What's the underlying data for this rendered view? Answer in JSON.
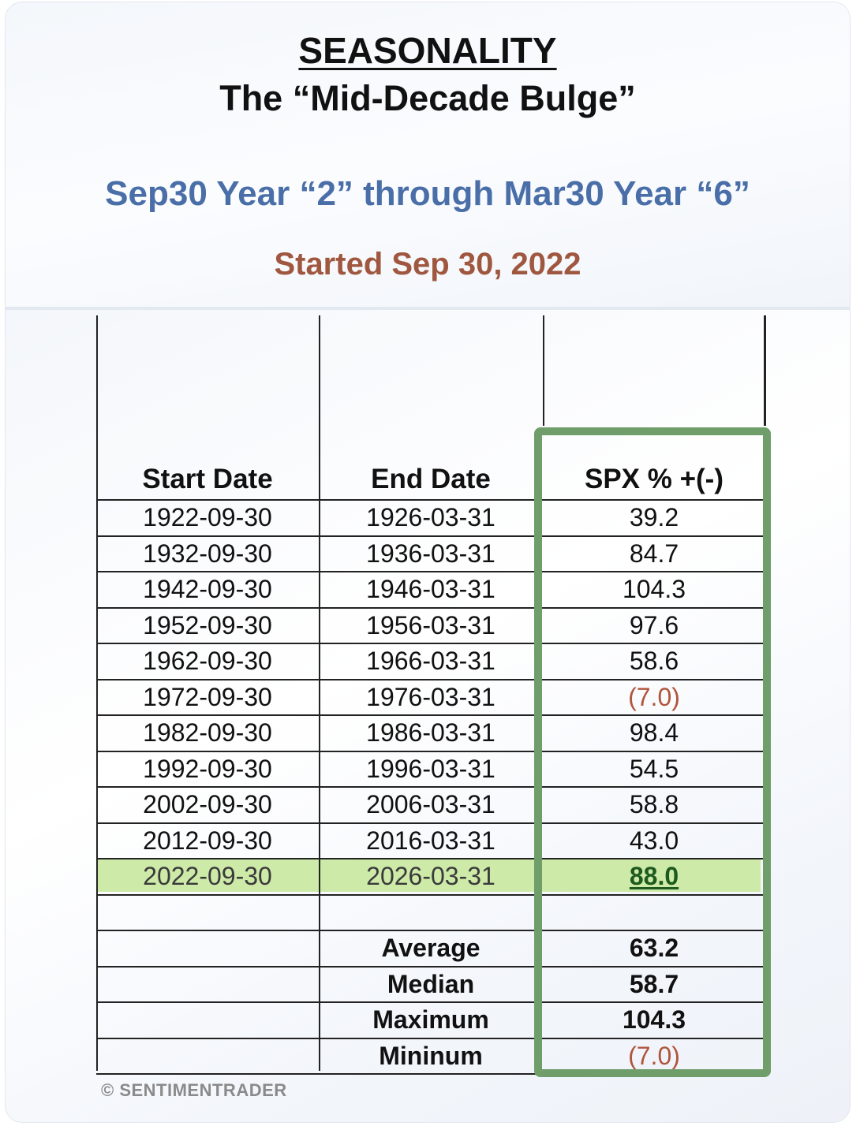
{
  "header": {
    "title": "SEASONALITY",
    "subtitle": "The “Mid-Decade Bulge”",
    "range": "Sep30 Year “2” through Mar30 Year “6”",
    "started": "Started Sep 30, 2022"
  },
  "table": {
    "columns": [
      "Start Date",
      "End Date",
      "SPX % +(-)"
    ],
    "rows": [
      {
        "start": "1922-09-30",
        "end": "1926-03-31",
        "spx": "39.2"
      },
      {
        "start": "1932-09-30",
        "end": "1936-03-31",
        "spx": "84.7"
      },
      {
        "start": "1942-09-30",
        "end": "1946-03-31",
        "spx": "104.3"
      },
      {
        "start": "1952-09-30",
        "end": "1956-03-31",
        "spx": "97.6"
      },
      {
        "start": "1962-09-30",
        "end": "1966-03-31",
        "spx": "58.6"
      },
      {
        "start": "1972-09-30",
        "end": "1976-03-31",
        "spx": "(7.0)"
      },
      {
        "start": "1982-09-30",
        "end": "1986-03-31",
        "spx": "98.4"
      },
      {
        "start": "1992-09-30",
        "end": "1996-03-31",
        "spx": "54.5"
      },
      {
        "start": "2002-09-30",
        "end": "2006-03-31",
        "spx": "58.8"
      },
      {
        "start": "2012-09-30",
        "end": "2016-03-31",
        "spx": "43.0"
      }
    ],
    "current": {
      "start": "2022-09-30",
      "end": "2026-03-31",
      "spx": "88.0"
    },
    "stats": [
      {
        "label": "Average",
        "value": "63.2"
      },
      {
        "label": "Median",
        "value": "58.7"
      },
      {
        "label": "Maximum",
        "value": "104.3"
      },
      {
        "label": "Mininum",
        "value": "(7.0)"
      }
    ]
  },
  "colors": {
    "range_blue": "#4a6fa8",
    "started_brown": "#a0573f",
    "negative": "#b0553c",
    "highlight_row": "#cdeaa8",
    "box_green": "#6f9e6a"
  },
  "footer": "© SENTIMENTRADER"
}
